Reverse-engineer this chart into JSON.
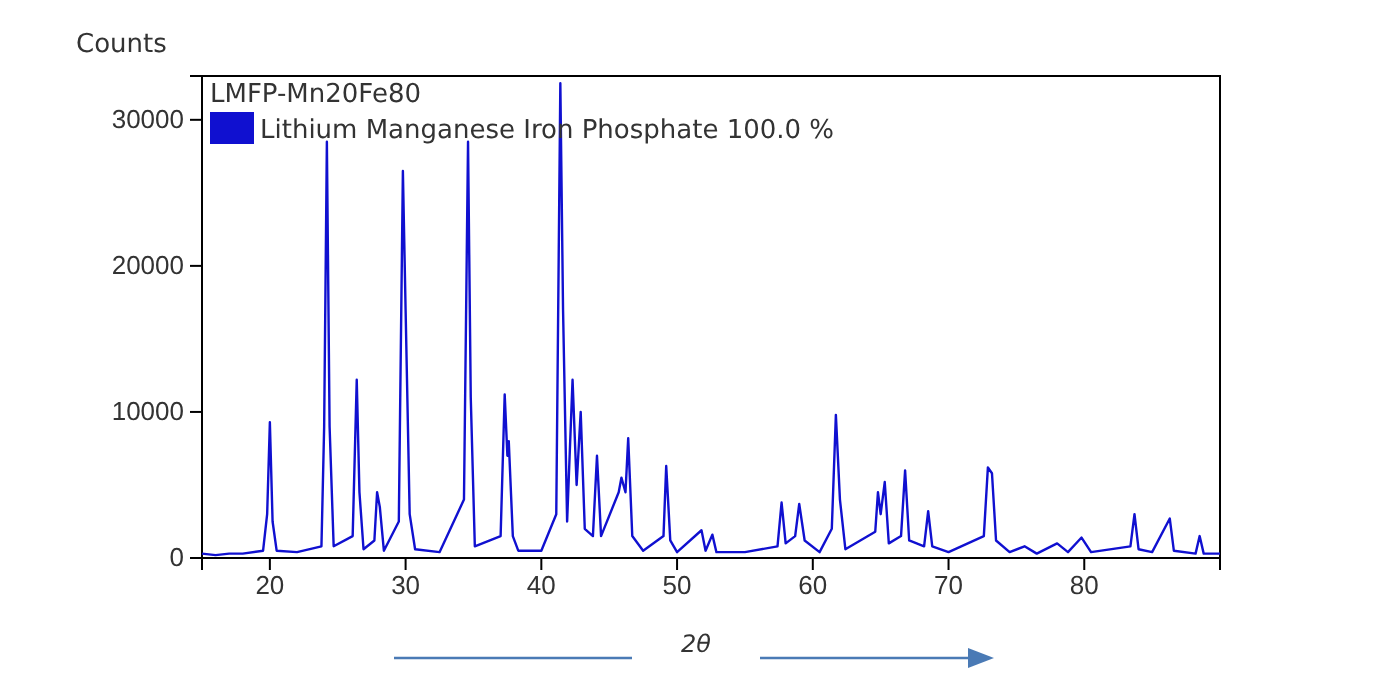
{
  "chart_data": {
    "type": "line",
    "title": "LMFP-Mn20Fe80",
    "ylabel": "Counts",
    "xlabel": "2θ",
    "xlim": [
      15,
      90
    ],
    "xticks": [
      20,
      30,
      40,
      50,
      60,
      70,
      80
    ],
    "ylim": [
      0,
      33000
    ],
    "yticks": [
      0,
      10000,
      20000,
      30000
    ],
    "legend": "top left",
    "grid": false,
    "marker": "none",
    "line_style": "solid",
    "x": [
      15,
      16,
      17,
      18,
      19.5,
      19.8,
      20.0,
      20.2,
      20.5,
      22,
      23.8,
      24.0,
      24.2,
      24.4,
      24.7,
      26.1,
      26.4,
      26.6,
      26.9,
      27.7,
      27.9,
      28.1,
      28.4,
      29.5,
      29.8,
      30.0,
      30.3,
      30.7,
      32.5,
      34.3,
      34.6,
      34.8,
      35.1,
      37.0,
      37.3,
      37.5,
      37.6,
      37.9,
      38.3,
      40.0,
      41.1,
      41.4,
      41.6,
      41.9,
      42.3,
      42.6,
      42.9,
      43.2,
      43.8,
      44.1,
      44.4,
      45.7,
      45.9,
      46.2,
      46.4,
      46.7,
      47.5,
      49.0,
      49.2,
      49.5,
      50,
      51.8,
      52.1,
      52.6,
      52.9,
      55,
      57.4,
      57.7,
      58.0,
      58.7,
      59.0,
      59.4,
      60.5,
      61.4,
      61.7,
      62.0,
      62.4,
      64.6,
      64.8,
      65.0,
      65.3,
      65.6,
      66.5,
      66.8,
      67.1,
      68.2,
      68.5,
      68.8,
      70,
      72.6,
      72.9,
      73.2,
      73.5,
      74.5,
      75.6,
      76.5,
      78.0,
      78.8,
      79.8,
      80.5,
      83.4,
      83.7,
      84.0,
      85,
      86.3,
      86.6,
      88.2,
      88.5,
      88.8,
      90
    ],
    "series": [
      {
        "name": "Lithium Manganese Iron Phosphate 100.0 %",
        "color": "#1010d0",
        "values": [
          300,
          200,
          300,
          300,
          500,
          3000,
          9300,
          2500,
          500,
          400,
          800,
          9000,
          28500,
          9000,
          800,
          1500,
          12200,
          4500,
          600,
          1200,
          4500,
          3500,
          500,
          2500,
          26500,
          17000,
          3000,
          600,
          400,
          4000,
          28500,
          11000,
          800,
          1500,
          11200,
          7000,
          8000,
          1500,
          500,
          500,
          3000,
          32500,
          17000,
          2500,
          12200,
          5000,
          10000,
          2000,
          1500,
          7000,
          1500,
          4500,
          5500,
          4500,
          8200,
          1500,
          500,
          1500,
          6300,
          1200,
          400,
          1900,
          500,
          1600,
          400,
          400,
          800,
          3800,
          1000,
          1500,
          3700,
          1200,
          400,
          2000,
          9800,
          4000,
          600,
          1800,
          4500,
          3000,
          5200,
          1000,
          1500,
          6000,
          1200,
          800,
          3200,
          800,
          400,
          1500,
          6200,
          5800,
          1200,
          400,
          800,
          300,
          1000,
          400,
          1400,
          400,
          800,
          3000,
          600,
          400,
          2700,
          500,
          300,
          1500,
          300,
          300
        ]
      }
    ]
  }
}
